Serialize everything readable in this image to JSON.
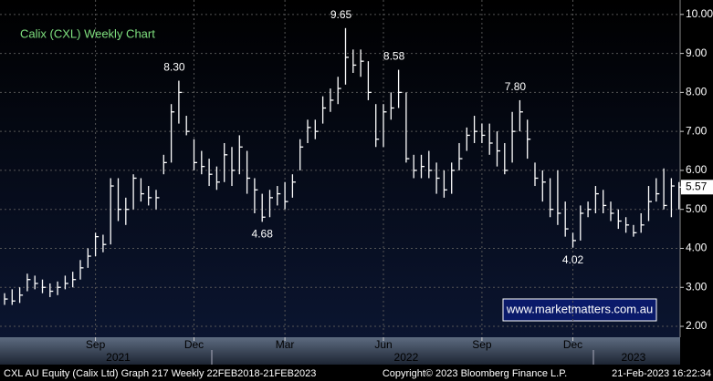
{
  "chart_data": {
    "type": "ohlc",
    "title": "Calix (CXL) Weekly Chart",
    "watermark": "www.marketmatters.com.au",
    "footer_left": "CXL AU Equity (Calix Ltd) Graph 217  Weekly 22FEB2018-21FEB2023",
    "footer_center": "Copyright© 2023 Bloomberg Finance L.P.",
    "footer_right": "21-Feb-2023 16:22:34",
    "color": "#ffffff",
    "grid": true,
    "ylim": [
      1.72,
      10.37
    ],
    "yticks": [
      {
        "value": 2,
        "label": "2.00"
      },
      {
        "value": 3,
        "label": "3.00"
      },
      {
        "value": 4,
        "label": "4.00"
      },
      {
        "value": 5,
        "label": "5.00"
      },
      {
        "value": 6,
        "label": "6.00"
      },
      {
        "value": 7,
        "label": "7.00"
      },
      {
        "value": 8,
        "label": "8.00"
      },
      {
        "value": 9,
        "label": "9.00"
      },
      {
        "value": 10,
        "label": "10.00"
      }
    ],
    "categories": [
      null,
      null,
      null,
      null,
      null,
      null,
      null,
      null,
      null,
      null,
      null,
      null,
      "Sep",
      null,
      null,
      null,
      null,
      null,
      null,
      null,
      null,
      null,
      null,
      null,
      null,
      "Dec",
      null,
      null,
      null,
      null,
      null,
      null,
      null,
      null,
      null,
      null,
      null,
      "Mar",
      null,
      null,
      null,
      null,
      null,
      null,
      null,
      null,
      null,
      null,
      null,
      null,
      "Jun",
      null,
      null,
      null,
      null,
      null,
      null,
      null,
      null,
      null,
      null,
      null,
      null,
      "Sep",
      null,
      null,
      null,
      null,
      null,
      null,
      null,
      null,
      null,
      null,
      null,
      "Dec",
      null,
      null,
      null,
      null,
      null,
      null,
      null,
      null,
      null,
      null,
      null,
      null,
      null,
      null
    ],
    "year_labels": [
      null,
      null,
      null,
      null,
      null,
      null,
      null,
      null,
      null,
      null,
      null,
      null,
      null,
      null,
      null,
      "2021",
      null,
      null,
      null,
      null,
      null,
      null,
      null,
      null,
      null,
      null,
      null,
      null,
      null,
      null,
      null,
      null,
      null,
      null,
      null,
      null,
      null,
      null,
      null,
      null,
      null,
      null,
      null,
      null,
      null,
      null,
      null,
      null,
      null,
      null,
      null,
      null,
      null,
      "2022",
      null,
      null,
      null,
      null,
      null,
      null,
      null,
      null,
      null,
      null,
      null,
      null,
      null,
      null,
      null,
      null,
      null,
      null,
      null,
      null,
      null,
      null,
      null,
      null,
      null,
      null,
      null,
      null,
      null,
      "2023",
      null,
      null,
      null,
      null,
      null,
      null
    ],
    "high": [
      2.85,
      2.95,
      3.0,
      3.35,
      3.3,
      3.2,
      3.1,
      3.15,
      3.3,
      3.4,
      3.7,
      4.0,
      4.4,
      4.35,
      5.8,
      5.8,
      5.3,
      5.9,
      5.8,
      5.6,
      5.5,
      6.4,
      7.7,
      8.3,
      7.4,
      6.8,
      6.5,
      6.3,
      6.1,
      6.7,
      6.6,
      6.9,
      6.5,
      5.8,
      5.4,
      5.5,
      5.6,
      5.7,
      5.9,
      6.8,
      7.3,
      7.3,
      7.9,
      8.1,
      8.4,
      9.65,
      9.1,
      9.1,
      8.8,
      7.7,
      7.7,
      8.0,
      8.58,
      8.0,
      6.4,
      6.4,
      6.5,
      6.2,
      6.0,
      6.2,
      6.7,
      7.1,
      7.4,
      7.2,
      7.2,
      7.0,
      6.7,
      7.5,
      7.8,
      7.3,
      6.2,
      6.0,
      5.8,
      6.0,
      5.2,
      4.4,
      5.1,
      5.2,
      5.6,
      5.5,
      5.2,
      5.0,
      4.8,
      4.6,
      4.9,
      5.6,
      5.8,
      6.05,
      5.8,
      5.7
    ],
    "low": [
      2.55,
      2.55,
      2.6,
      2.9,
      2.95,
      2.85,
      2.75,
      2.8,
      2.95,
      3.0,
      3.2,
      3.5,
      3.8,
      3.9,
      4.1,
      4.7,
      4.6,
      5.0,
      5.2,
      5.1,
      5.0,
      5.9,
      6.2,
      7.2,
      6.9,
      6.0,
      5.9,
      5.6,
      5.5,
      5.7,
      5.6,
      5.9,
      5.4,
      4.9,
      4.68,
      4.8,
      5.1,
      5.0,
      5.3,
      6.0,
      6.7,
      6.8,
      7.2,
      7.5,
      7.7,
      8.2,
      8.5,
      8.4,
      7.8,
      6.6,
      6.6,
      7.3,
      7.6,
      6.2,
      5.8,
      5.8,
      5.8,
      5.4,
      5.3,
      5.4,
      6.0,
      6.5,
      6.7,
      6.7,
      6.4,
      6.1,
      5.9,
      6.2,
      7.0,
      6.3,
      5.6,
      5.2,
      4.8,
      4.6,
      4.3,
      4.02,
      4.2,
      4.8,
      4.9,
      4.9,
      4.7,
      4.5,
      4.4,
      4.3,
      4.4,
      4.7,
      5.2,
      5.0,
      4.8,
      5.0
    ],
    "close": [
      2.7,
      2.65,
      2.8,
      3.2,
      3.1,
      3.0,
      2.9,
      3.0,
      3.1,
      3.2,
      3.5,
      3.8,
      4.3,
      4.1,
      5.6,
      5.0,
      5.0,
      5.8,
      5.4,
      5.3,
      5.3,
      6.2,
      7.5,
      8.0,
      7.0,
      6.2,
      6.1,
      5.9,
      5.7,
      6.4,
      6.0,
      6.6,
      5.8,
      5.5,
      4.8,
      5.3,
      5.4,
      5.2,
      5.7,
      6.6,
      7.1,
      7.0,
      7.6,
      7.8,
      8.1,
      8.9,
      8.7,
      8.8,
      8.0,
      6.8,
      7.5,
      7.6,
      8.0,
      6.3,
      6.0,
      6.1,
      6.0,
      5.8,
      5.5,
      6.0,
      6.3,
      6.9,
      7.0,
      6.9,
      6.7,
      6.5,
      6.0,
      7.0,
      7.5,
      6.8,
      5.8,
      5.7,
      5.0,
      4.9,
      4.5,
      4.2,
      4.9,
      5.0,
      5.4,
      5.1,
      4.9,
      4.7,
      4.6,
      4.4,
      4.6,
      5.2,
      5.4,
      5.1,
      5.6,
      5.57
    ],
    "high_labels": [
      null,
      null,
      null,
      null,
      null,
      null,
      null,
      null,
      null,
      null,
      null,
      null,
      null,
      null,
      null,
      null,
      null,
      null,
      null,
      null,
      null,
      null,
      null,
      "8.30",
      null,
      null,
      null,
      null,
      null,
      null,
      null,
      null,
      null,
      null,
      null,
      null,
      null,
      null,
      null,
      null,
      null,
      null,
      null,
      null,
      null,
      "9.65",
      null,
      null,
      null,
      null,
      null,
      null,
      "8.58",
      null,
      null,
      null,
      null,
      null,
      null,
      null,
      null,
      null,
      null,
      null,
      null,
      null,
      null,
      null,
      "7.80",
      null,
      null,
      null,
      null,
      null,
      null,
      null,
      null,
      null,
      null,
      null,
      null,
      null,
      null,
      null,
      null,
      null,
      null,
      null,
      null,
      null
    ],
    "low_labels": [
      null,
      null,
      null,
      null,
      null,
      null,
      null,
      null,
      null,
      null,
      null,
      null,
      null,
      null,
      null,
      null,
      null,
      null,
      null,
      null,
      null,
      null,
      null,
      null,
      null,
      null,
      null,
      null,
      null,
      null,
      null,
      null,
      null,
      null,
      "4.68",
      null,
      null,
      null,
      null,
      null,
      null,
      null,
      null,
      null,
      null,
      null,
      null,
      null,
      null,
      null,
      null,
      null,
      null,
      null,
      null,
      null,
      null,
      null,
      null,
      null,
      null,
      null,
      null,
      null,
      null,
      null,
      null,
      null,
      null,
      null,
      null,
      null,
      null,
      null,
      null,
      "4.02",
      null,
      null,
      null,
      null,
      null,
      null,
      null,
      null,
      null,
      null,
      null,
      null,
      null,
      null
    ]
  }
}
